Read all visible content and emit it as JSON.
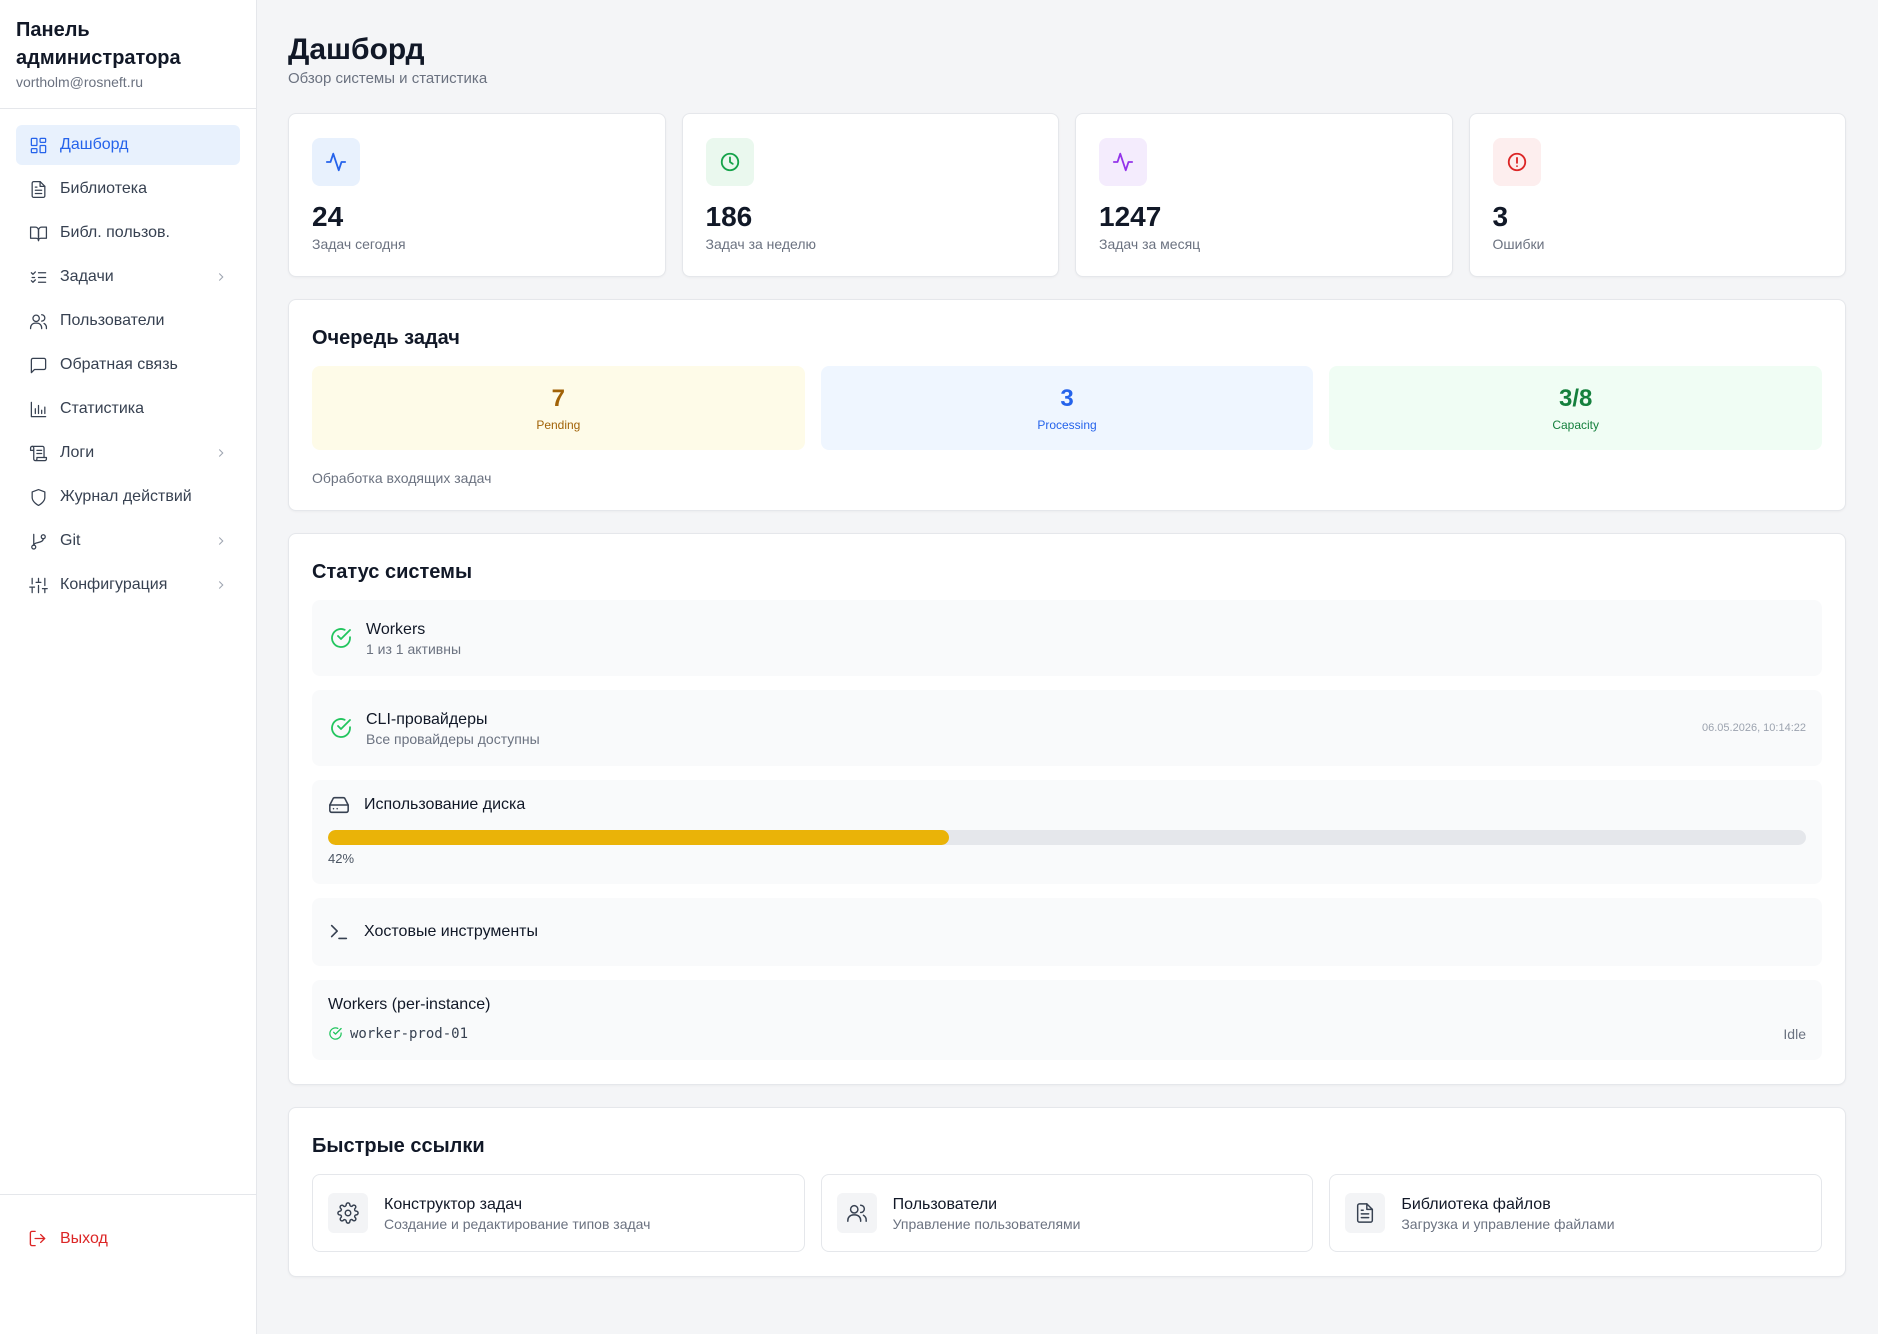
{
  "sidebar": {
    "title": "Панель администратора",
    "email": "vortholm@rosneft.ru",
    "items": [
      {
        "label": "Дашборд",
        "icon": "dashboard-icon"
      },
      {
        "label": "Библиотека",
        "icon": "file-text-icon"
      },
      {
        "label": "Библ. пользов.",
        "icon": "book-open-icon"
      },
      {
        "label": "Задачи",
        "icon": "list-checks-icon"
      },
      {
        "label": "Пользователи",
        "icon": "users-icon"
      },
      {
        "label": "Обратная связь",
        "icon": "message-square-icon"
      },
      {
        "label": "Статистика",
        "icon": "bar-chart-icon"
      },
      {
        "label": "Логи",
        "icon": "scroll-icon"
      },
      {
        "label": "Журнал действий",
        "icon": "shield-icon"
      },
      {
        "label": "Git",
        "icon": "git-branch-icon"
      },
      {
        "label": "Конфигурация",
        "icon": "sliders-icon"
      }
    ],
    "logout": "Выход"
  },
  "header": {
    "title": "Дашборд",
    "subtitle": "Обзор системы и статистика"
  },
  "stats": [
    {
      "value": "24",
      "label": "Задач сегодня",
      "icon": "activity-icon",
      "color": "#2563eb",
      "bg": "#e8f1fd"
    },
    {
      "value": "186",
      "label": "Задач за неделю",
      "icon": "clock-icon",
      "color": "#16a34a",
      "bg": "#eaf8ee"
    },
    {
      "value": "1247",
      "label": "Задач за месяц",
      "icon": "activity-icon",
      "color": "#9333ea",
      "bg": "#f4ecfd"
    },
    {
      "value": "3",
      "label": "Ошибки",
      "icon": "alert-circle-icon",
      "color": "#dc2626",
      "bg": "#fdeeee"
    }
  ],
  "queue": {
    "title": "Очередь задач",
    "boxes": [
      {
        "value": "7",
        "label": "Pending",
        "color": "#a16207",
        "bg": "#fefbe8"
      },
      {
        "value": "3",
        "label": "Processing",
        "color": "#2563eb",
        "bg": "#eff6ff"
      },
      {
        "value": "3/8",
        "label": "Capacity",
        "color": "#15803d",
        "bg": "#f0fdf4"
      }
    ],
    "note": "Обработка входящих задач"
  },
  "system": {
    "title": "Статус системы",
    "workers": {
      "name": "Workers",
      "desc": "1 из 1 активны"
    },
    "cli": {
      "name": "CLI-провайдеры",
      "desc": "Все провайдеры доступны",
      "time": "06.05.2026, 10:14:22"
    },
    "disk": {
      "name": "Использование диска",
      "percent": 42,
      "percent_label": "42%"
    },
    "tools": {
      "name": "Хостовые инструменты"
    },
    "workers_instance": {
      "title": "Workers (per-instance)",
      "items": [
        {
          "name": "worker-prod-01",
          "state": "Idle"
        }
      ]
    },
    "ok_color": "#22c55e"
  },
  "quick_links": {
    "title": "Быстрые ссылки",
    "items": [
      {
        "title": "Конструктор задач",
        "desc": "Создание и редактирование типов задач",
        "icon": "gear-icon"
      },
      {
        "title": "Пользователи",
        "desc": "Управление пользователями",
        "icon": "users-icon"
      },
      {
        "title": "Библиотека файлов",
        "desc": "Загрузка и управление файлами",
        "icon": "file-text-icon"
      }
    ]
  }
}
